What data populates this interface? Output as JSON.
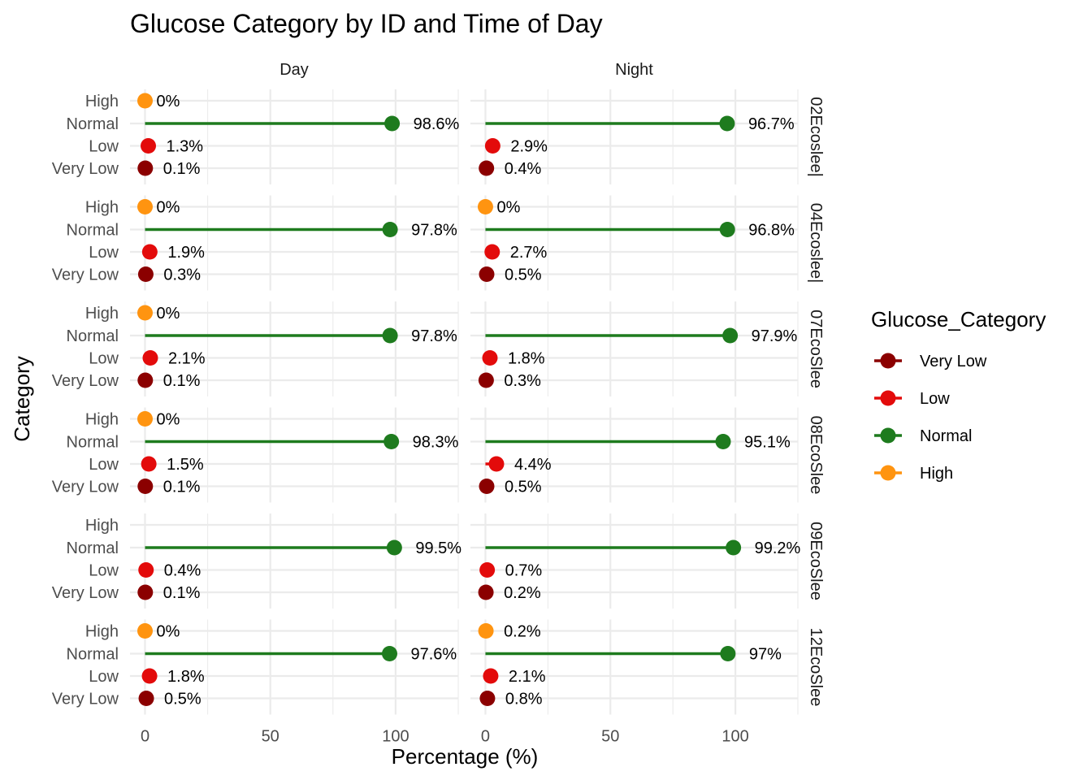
{
  "chart_data": {
    "type": "lollipop",
    "title": "Glucose Category by ID and Time of Day",
    "xlabel": "Percentage (%)",
    "ylabel": "Category",
    "xlim": [
      -6,
      125
    ],
    "xticks": [
      0,
      50,
      100
    ],
    "categories": [
      "Very Low",
      "Low",
      "Normal",
      "High"
    ],
    "columns": [
      "Day",
      "Night"
    ],
    "rows": [
      "02Ecoslee|",
      "04Ecoslee|",
      "07EcoSlee",
      "08EcoSlee",
      "09EcoSlee",
      "12EcoSlee"
    ],
    "legend": {
      "title": "Glucose_Category",
      "entries": [
        "Very Low",
        "Low",
        "Normal",
        "High"
      ],
      "placement": "right"
    },
    "colors": {
      "Very Low": "#8B0000",
      "Low": "#E30B0B",
      "Normal": "#1E7B1E",
      "High": "#FF9410"
    },
    "grid": true,
    "panels": [
      {
        "row": "02Ecoslee|",
        "column": "Day",
        "values": {
          "High": 0,
          "Normal": 98.6,
          "Low": 1.3,
          "Very Low": 0.1
        },
        "labels": {
          "High": "0%",
          "Normal": "98.6%",
          "Low": "1.3%",
          "Very Low": "0.1%"
        }
      },
      {
        "row": "02Ecoslee|",
        "column": "Night",
        "values": {
          "Normal": 96.7,
          "Low": 2.9,
          "Very Low": 0.4
        },
        "labels": {
          "Normal": "96.7%",
          "Low": "2.9%",
          "Very Low": "0.4%"
        }
      },
      {
        "row": "04Ecoslee|",
        "column": "Day",
        "values": {
          "High": 0,
          "Normal": 97.8,
          "Low": 1.9,
          "Very Low": 0.3
        },
        "labels": {
          "High": "0%",
          "Normal": "97.8%",
          "Low": "1.9%",
          "Very Low": "0.3%"
        }
      },
      {
        "row": "04Ecoslee|",
        "column": "Night",
        "values": {
          "High": 0,
          "Normal": 96.8,
          "Low": 2.7,
          "Very Low": 0.5
        },
        "labels": {
          "High": "0%",
          "Normal": "96.8%",
          "Low": "2.7%",
          "Very Low": "0.5%"
        }
      },
      {
        "row": "07EcoSlee",
        "column": "Day",
        "values": {
          "High": 0,
          "Normal": 97.8,
          "Low": 2.1,
          "Very Low": 0.1
        },
        "labels": {
          "High": "0%",
          "Normal": "97.8%",
          "Low": "2.1%",
          "Very Low": "0.1%"
        }
      },
      {
        "row": "07EcoSlee",
        "column": "Night",
        "values": {
          "Normal": 97.9,
          "Low": 1.8,
          "Very Low": 0.3
        },
        "labels": {
          "Normal": "97.9%",
          "Low": "1.8%",
          "Very Low": "0.3%"
        }
      },
      {
        "row": "08EcoSlee",
        "column": "Day",
        "values": {
          "High": 0,
          "Normal": 98.3,
          "Low": 1.5,
          "Very Low": 0.1
        },
        "labels": {
          "High": "0%",
          "Normal": "98.3%",
          "Low": "1.5%",
          "Very Low": "0.1%"
        }
      },
      {
        "row": "08EcoSlee",
        "column": "Night",
        "values": {
          "Normal": 95.1,
          "Low": 4.4,
          "Very Low": 0.5
        },
        "labels": {
          "Normal": "95.1%",
          "Low": "4.4%",
          "Very Low": "0.5%"
        }
      },
      {
        "row": "09EcoSlee",
        "column": "Day",
        "values": {
          "Normal": 99.5,
          "Low": 0.4,
          "Very Low": 0.1
        },
        "labels": {
          "Normal": "99.5%",
          "Low": "0.4%",
          "Very Low": "0.1%"
        }
      },
      {
        "row": "09EcoSlee",
        "column": "Night",
        "values": {
          "Normal": 99.2,
          "Low": 0.7,
          "Very Low": 0.2
        },
        "labels": {
          "Normal": "99.2%",
          "Low": "0.7%",
          "Very Low": "0.2%"
        }
      },
      {
        "row": "12EcoSlee",
        "column": "Day",
        "values": {
          "High": 0,
          "Normal": 97.6,
          "Low": 1.8,
          "Very Low": 0.5
        },
        "labels": {
          "High": "0%",
          "Normal": "97.6%",
          "Low": "1.8%",
          "Very Low": "0.5%"
        }
      },
      {
        "row": "12EcoSlee",
        "column": "Night",
        "values": {
          "High": 0.2,
          "Normal": 97,
          "Low": 2.1,
          "Very Low": 0.8
        },
        "labels": {
          "High": "0.2%",
          "Normal": "97%",
          "Low": "2.1%",
          "Very Low": "0.8%"
        }
      }
    ]
  }
}
